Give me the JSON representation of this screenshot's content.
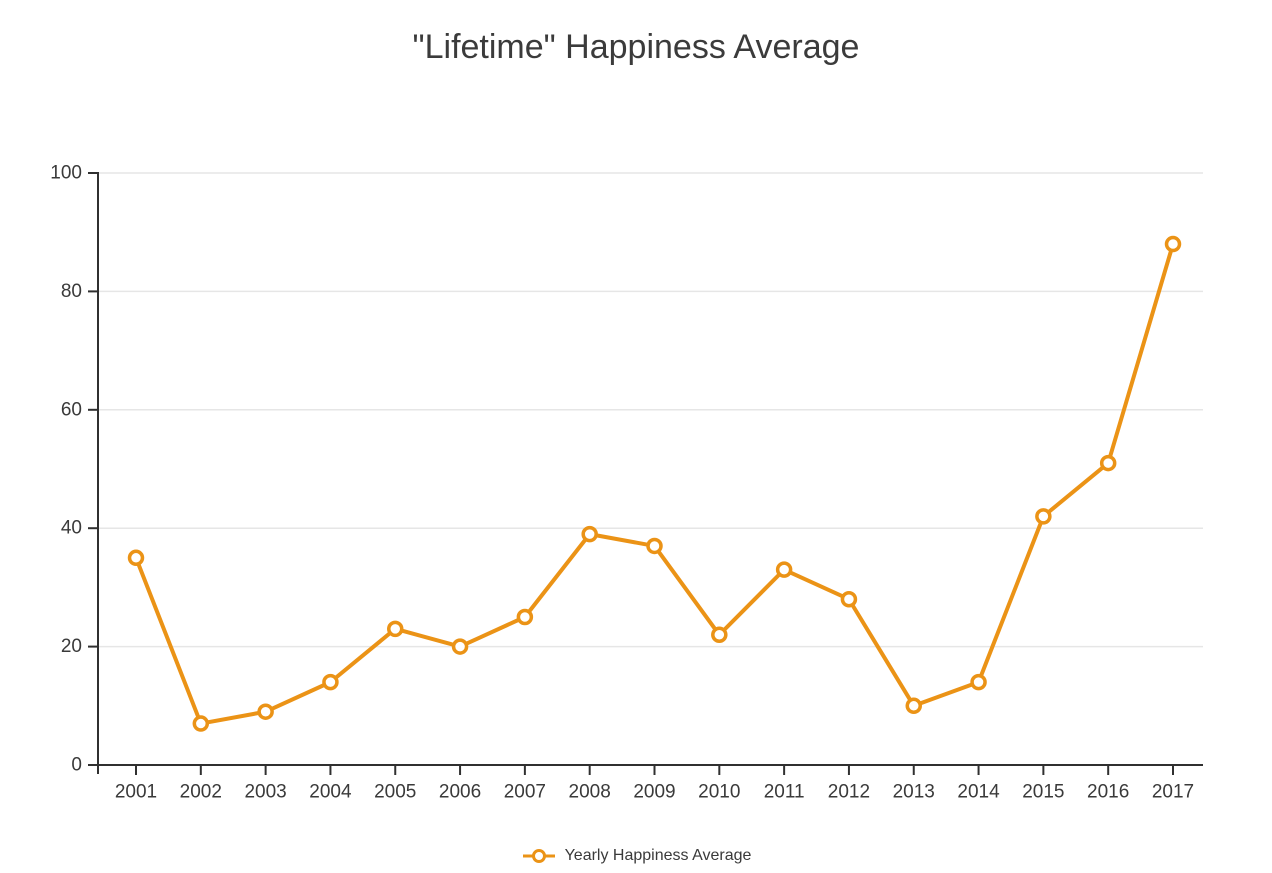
{
  "page": {
    "title": "\"Lifetime\" Happiness Average"
  },
  "legend": {
    "label": "Yearly Happiness Average"
  },
  "colors": {
    "line": "#EB9316",
    "marker_fill": "#ffffff",
    "axis": "#303030",
    "grid": "#e6e6e6",
    "text": "#3a3a3a",
    "title": "#3b3b3b"
  },
  "chart_data": {
    "type": "line",
    "title": "\"Lifetime\" Happiness Average",
    "xlabel": "",
    "ylabel": "",
    "categories": [
      "2001",
      "2002",
      "2003",
      "2004",
      "2005",
      "2006",
      "2007",
      "2008",
      "2009",
      "2010",
      "2011",
      "2012",
      "2013",
      "2014",
      "2015",
      "2016",
      "2017"
    ],
    "series": [
      {
        "name": "Yearly Happiness Average",
        "values": [
          35,
          7,
          9,
          14,
          23,
          20,
          25,
          39,
          37,
          22,
          33,
          28,
          10,
          14,
          42,
          51,
          88
        ]
      }
    ],
    "ylim": [
      0,
      100
    ],
    "yticks": [
      0,
      20,
      40,
      60,
      80,
      100
    ],
    "grid": true,
    "legend_position": "bottom",
    "marker": "open-circle"
  }
}
